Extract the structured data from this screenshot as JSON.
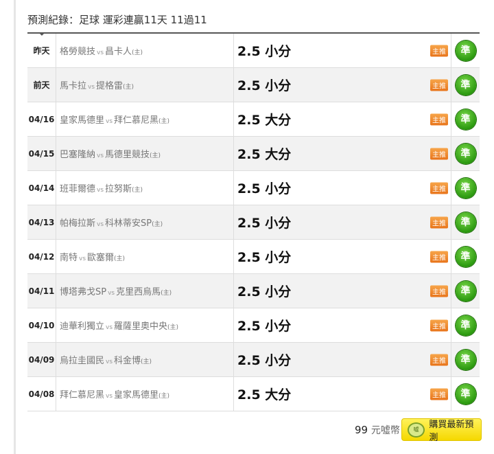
{
  "title": "預測紀錄：足球 運彩連贏11天 11過11",
  "vs_label": "vs",
  "home_marker": "(主)",
  "badge_label": "主推",
  "result_label": "準",
  "rows": [
    {
      "date": "昨天",
      "away": "格勞競技",
      "home": "昌卡人",
      "pick": "2.5 小分"
    },
    {
      "date": "前天",
      "away": "馬卡拉",
      "home": "提格雷",
      "pick": "2.5 小分"
    },
    {
      "date": "04/16",
      "away": "皇家馬德里",
      "home": "拜仁慕尼黑",
      "pick": "2.5 大分"
    },
    {
      "date": "04/15",
      "away": "巴塞隆納",
      "home": "馬德里競技",
      "pick": "2.5 大分"
    },
    {
      "date": "04/14",
      "away": "班菲爾德",
      "home": "拉努斯",
      "pick": "2.5 小分"
    },
    {
      "date": "04/13",
      "away": "帕梅拉斯",
      "home": "科林蒂安SP",
      "pick": "2.5 小分"
    },
    {
      "date": "04/12",
      "away": "南特",
      "home": "歐塞爾",
      "pick": "2.5 小分"
    },
    {
      "date": "04/11",
      "away": "博塔弗戈SP",
      "home": "克里西烏馬",
      "pick": "2.5 小分"
    },
    {
      "date": "04/10",
      "away": "迪華利獨立",
      "home": "羅薩里奧中央",
      "pick": "2.5 小分"
    },
    {
      "date": "04/09",
      "away": "烏拉圭國民",
      "home": "科金博",
      "pick": "2.5 小分"
    },
    {
      "date": "04/08",
      "away": "拜仁慕尼黑",
      "home": "皇家馬德里",
      "pick": "2.5 大分"
    }
  ],
  "footer": {
    "price": "99",
    "price_unit": "元噓幣",
    "coin_text": "噓",
    "buy_label": "購買最新預測"
  },
  "colors": {
    "badge": "#ee8326",
    "result": "#2c9a10",
    "buy": "#f8e01a"
  }
}
